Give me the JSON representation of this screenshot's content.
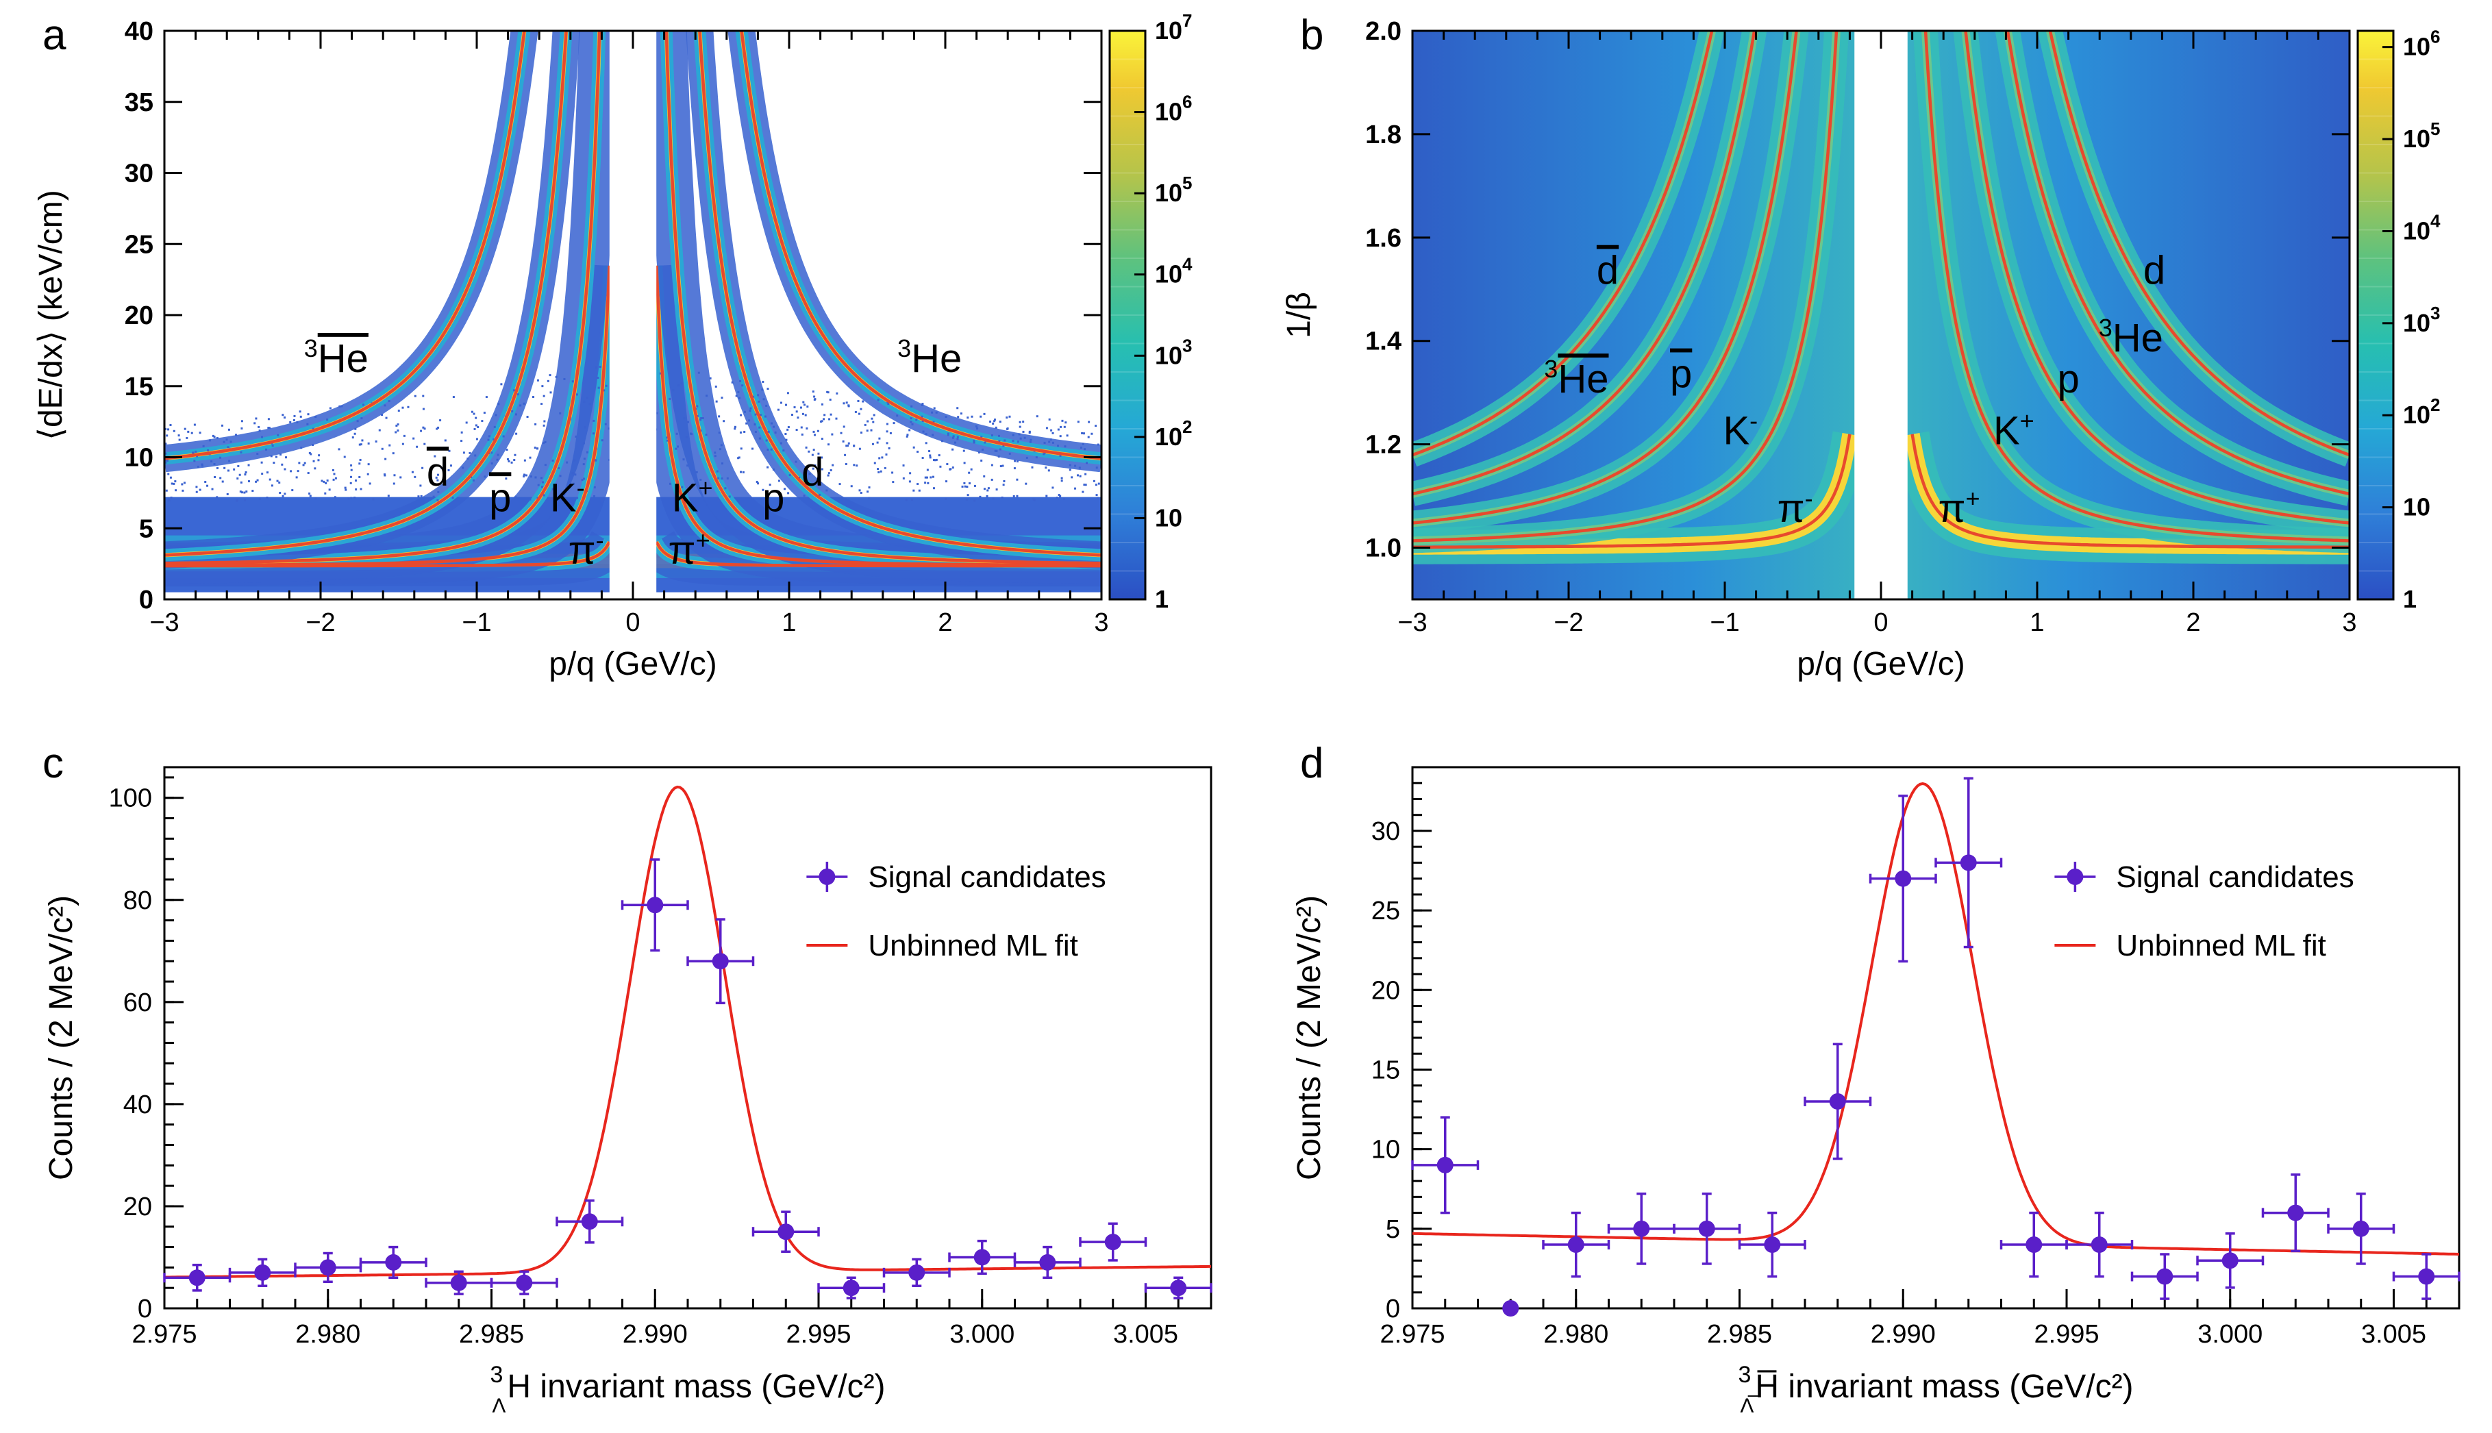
{
  "chart_data": [
    {
      "panel": "a",
      "type": "heatmap",
      "xlabel": "p/q (GeV/c)",
      "ylabel": "⟨dE/dx⟩ (keV/cm)",
      "xlim": [
        -3,
        3
      ],
      "ylim": [
        0,
        40
      ],
      "xticks": [
        "−3",
        "−2",
        "−1",
        "0",
        "1",
        "2",
        "3"
      ],
      "yticks": [
        "0",
        "5",
        "10",
        "15",
        "20",
        "25",
        "30",
        "35",
        "40"
      ],
      "colorbar": {
        "scale": "log",
        "range": [
          1,
          10000000
        ],
        "ticks": [
          "1",
          "10",
          "10²",
          "10³",
          "10⁴",
          "10⁵",
          "10⁶",
          "10⁷"
        ]
      },
      "band_labels": [
        {
          "text": "³He̅",
          "x": -1.9,
          "y": 16
        },
        {
          "text": "³He",
          "x": 1.9,
          "y": 16
        },
        {
          "text": "d̅",
          "x": -1.25,
          "y": 8
        },
        {
          "text": "p̅",
          "x": -0.85,
          "y": 6.2
        },
        {
          "text": "K⁻",
          "x": -0.42,
          "y": 6.2
        },
        {
          "text": "K⁺",
          "x": 0.38,
          "y": 6.2
        },
        {
          "text": "p",
          "x": 0.9,
          "y": 6.2
        },
        {
          "text": "d",
          "x": 1.15,
          "y": 8
        },
        {
          "text": "π⁻",
          "x": -0.3,
          "y": 2.5
        },
        {
          "text": "π⁺",
          "x": 0.36,
          "y": 2.5
        }
      ]
    },
    {
      "panel": "b",
      "type": "heatmap",
      "xlabel": "p/q (GeV/c)",
      "ylabel": "1/β",
      "xlim": [
        -3,
        3
      ],
      "ylim": [
        0.9,
        2.0
      ],
      "xticks": [
        "−3",
        "−2",
        "−1",
        "0",
        "1",
        "2",
        "3"
      ],
      "yticks": [
        "1.0",
        "1.2",
        "1.4",
        "1.6",
        "1.8",
        "2.0"
      ],
      "colorbar": {
        "scale": "log",
        "range": [
          1,
          1500000
        ],
        "ticks": [
          "1",
          "10",
          "10²",
          "10³",
          "10⁴",
          "10⁵",
          "10⁶"
        ]
      },
      "band_labels": [
        {
          "text": "d̅",
          "x": -1.75,
          "y": 1.51
        },
        {
          "text": "³He̅",
          "x": -1.95,
          "y": 1.3
        },
        {
          "text": "p̅",
          "x": -1.28,
          "y": 1.31
        },
        {
          "text": "K⁻",
          "x": -0.9,
          "y": 1.2
        },
        {
          "text": "π⁻",
          "x": -0.55,
          "y": 1.05
        },
        {
          "text": "π⁺",
          "x": 0.5,
          "y": 1.05
        },
        {
          "text": "K⁺",
          "x": 0.85,
          "y": 1.2
        },
        {
          "text": "p",
          "x": 1.2,
          "y": 1.3
        },
        {
          "text": "³He",
          "x": 1.6,
          "y": 1.38
        },
        {
          "text": "d",
          "x": 1.75,
          "y": 1.51
        }
      ]
    },
    {
      "panel": "c",
      "type": "scatter",
      "xlabel_html": "invariant mass (GeV/c²)",
      "xlabel_sub": "Λ",
      "xlabel_sup": "3",
      "xlabel_sym": "H",
      "ylabel": "Counts / (2 MeV/c²)",
      "xlim": [
        2.975,
        3.007
      ],
      "ylim": [
        0,
        106
      ],
      "xticks": [
        "2.975",
        "2.980",
        "2.985",
        "2.990",
        "2.995",
        "3.000",
        "3.005"
      ],
      "yticks": [
        "0",
        "20",
        "40",
        "60",
        "80",
        "100"
      ],
      "legend": [
        "Signal candidates",
        "Unbinned ML fit"
      ],
      "series": [
        {
          "name": "Signal candidates",
          "x": [
            2.976,
            2.978,
            2.98,
            2.982,
            2.984,
            2.986,
            2.988,
            2.99,
            2.992,
            2.994,
            2.996,
            2.998,
            3.0,
            3.002,
            3.004,
            3.006
          ],
          "y": [
            6,
            7,
            8,
            9,
            5,
            5,
            17,
            79,
            68,
            15,
            4,
            7,
            10,
            9,
            13,
            4
          ],
          "err": [
            2.5,
            2.6,
            2.8,
            3.0,
            2.2,
            2.2,
            4.1,
            8.9,
            8.2,
            3.9,
            2.0,
            2.6,
            3.2,
            3.0,
            3.6,
            2.0
          ]
        },
        {
          "name": "Unbinned ML fit",
          "fit": {
            "bkg_a": 6.1,
            "bkg_b": 8.2,
            "amp": 95.0,
            "mu": 2.9907,
            "sigma": 0.00145
          }
        }
      ]
    },
    {
      "panel": "d",
      "type": "scatter",
      "xlabel_html": "invariant mass (GeV/c²)",
      "xlabel_sub": "Λ̅",
      "xlabel_sup": "3",
      "xlabel_sym": "H̅",
      "ylabel": "Counts / (2 MeV/c²)",
      "xlim": [
        2.975,
        3.007
      ],
      "ylim": [
        0,
        34
      ],
      "xticks": [
        "2.975",
        "2.980",
        "2.985",
        "2.990",
        "2.995",
        "3.000",
        "3.005"
      ],
      "yticks": [
        "0",
        "5",
        "10",
        "15",
        "20",
        "25",
        "30"
      ],
      "legend": [
        "Signal candidates",
        "Unbinned ML fit"
      ],
      "series": [
        {
          "name": "Signal candidates",
          "x": [
            2.976,
            2.978,
            2.98,
            2.982,
            2.984,
            2.986,
            2.988,
            2.99,
            2.992,
            2.994,
            2.996,
            2.998,
            3.0,
            3.002,
            3.004,
            3.006
          ],
          "y": [
            9,
            0,
            4,
            5,
            5,
            4,
            13,
            27,
            28,
            4,
            4,
            2,
            3,
            6,
            5,
            2
          ],
          "err": [
            3.0,
            0,
            2.0,
            2.2,
            2.2,
            2.0,
            3.6,
            5.2,
            5.3,
            2.0,
            2.0,
            1.4,
            1.7,
            2.4,
            2.2,
            1.4
          ]
        },
        {
          "name": "Unbinned ML fit",
          "fit": {
            "bkg_a": 4.7,
            "bkg_b": 3.4,
            "amp": 28.9,
            "mu": 2.9906,
            "sigma": 0.00155
          }
        }
      ]
    }
  ],
  "colors": {
    "curve": "#e8492d",
    "points": "#5a1fc9",
    "fit": "#e8261d"
  }
}
